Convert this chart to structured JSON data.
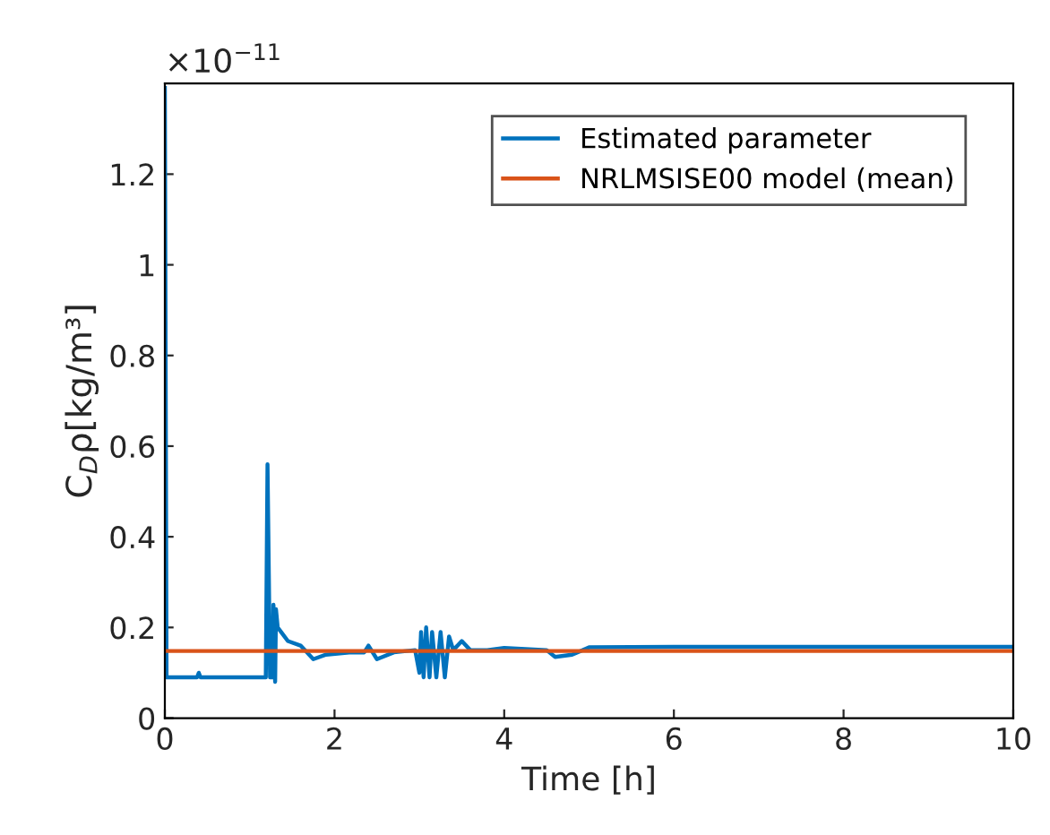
{
  "chart_data": {
    "type": "line",
    "xlabel": "Time [h]",
    "ylabel": "C$_{D}$ρ[kg/m³]",
    "xlim": [
      0,
      10
    ],
    "xticks": [
      0,
      2,
      4,
      6,
      8,
      10
    ],
    "ylim": [
      0,
      1.4
    ],
    "yticks": [
      0,
      0.2,
      0.4,
      0.6,
      0.8,
      1,
      1.2
    ],
    "annotations": [
      "×10$^{−11}$"
    ],
    "legend": "top right",
    "grid": false,
    "series": [
      {
        "name": "Estimated parameter",
        "color": "#0072bd",
        "x": [
          0,
          0.02,
          0.38,
          0.4,
          0.42,
          1.19,
          1.21,
          1.24,
          1.27,
          1.28,
          1.3,
          1.31,
          1.33,
          1.37,
          1.45,
          1.6,
          1.75,
          1.9,
          2.2,
          2.35,
          2.4,
          2.5,
          2.7,
          2.95,
          3.0,
          3.02,
          3.05,
          3.08,
          3.12,
          3.15,
          3.2,
          3.25,
          3.3,
          3.35,
          3.4,
          3.5,
          3.6,
          3.8,
          4.0,
          4.5,
          4.6,
          4.8,
          5.0,
          6,
          8,
          10
        ],
        "values": [
          1.39,
          0.09,
          0.09,
          0.1,
          0.09,
          0.09,
          0.56,
          0.09,
          0.09,
          0.25,
          0.08,
          0.24,
          0.2,
          0.19,
          0.17,
          0.16,
          0.13,
          0.14,
          0.145,
          0.145,
          0.16,
          0.13,
          0.145,
          0.15,
          0.1,
          0.19,
          0.09,
          0.2,
          0.09,
          0.19,
          0.09,
          0.19,
          0.09,
          0.18,
          0.15,
          0.17,
          0.15,
          0.15,
          0.155,
          0.15,
          0.135,
          0.14,
          0.156,
          0.157,
          0.157,
          0.157
        ]
      },
      {
        "name": "NRLMSISE00 model (mean)",
        "color": "#d95319",
        "x": [
          0,
          10
        ],
        "values": [
          0.148,
          0.148
        ]
      }
    ]
  }
}
